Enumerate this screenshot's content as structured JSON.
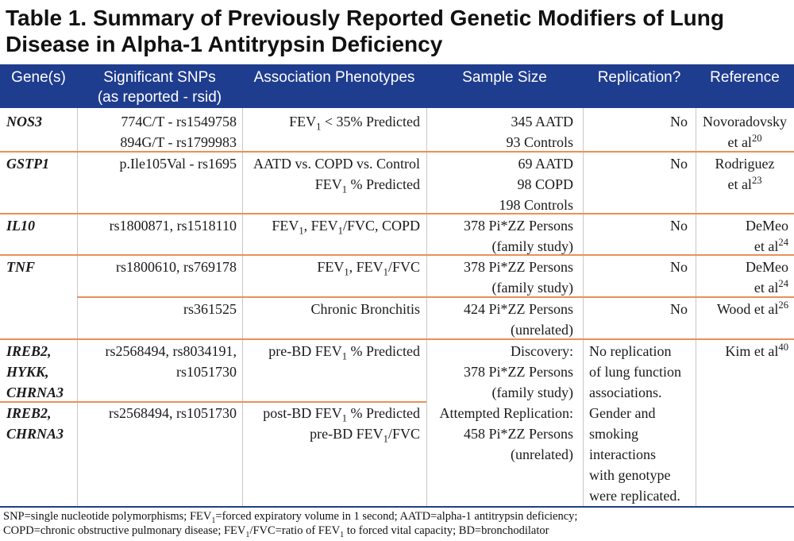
{
  "title": "Table 1. Summary of Previously Reported Genetic Modifiers of Lung Disease in Alpha-1 Antitrypsin Deficiency",
  "headers": {
    "gene": "Gene(s)",
    "snps_line1": "Significant SNPs",
    "snps_line2": "(as reported - rsid)",
    "phenotypes": "Association Phenotypes",
    "sample": "Sample Size",
    "replication": "Replication?",
    "reference": "Reference"
  },
  "rows": {
    "nos3": {
      "gene": "NOS3",
      "snp1": "774C/T - rs1549758",
      "snp2": "894G/T - rs1799983",
      "pheno_a": "FEV",
      "pheno_sub": "1",
      "pheno_b": " < 35% Predicted",
      "sample1": "345 AATD",
      "sample2": "93 Controls",
      "replication": "No",
      "ref1": "Novoradovsky",
      "ref2": "et al",
      "ref_sup": "20"
    },
    "gstp1": {
      "gene": "GSTP1",
      "snp1": "p.Ile105Val - rs1695",
      "pheno1": "AATD vs. COPD vs. Control",
      "pheno2_a": "FEV",
      "pheno2_sub": "1",
      "pheno2_b": " % Predicted",
      "sample1": "69 AATD",
      "sample2": "98 COPD",
      "sample3": "198 Controls",
      "replication": "No",
      "ref1": "Rodriguez",
      "ref2": "et al",
      "ref_sup": "23"
    },
    "il10": {
      "gene": "IL10",
      "snp1": "rs1800871, rs1518110",
      "pheno_a": "FEV",
      "pheno_sub1": "1",
      "pheno_b": ", FEV",
      "pheno_sub2": "1",
      "pheno_c": "/FVC, COPD",
      "sample1": "378 Pi*ZZ Persons",
      "sample2": "(family study)",
      "replication": "No",
      "ref1": "DeMeo",
      "ref2": "et al",
      "ref_sup": "24"
    },
    "tnf": {
      "gene": "TNF",
      "snp1": "rs1800610, rs769178",
      "pheno_a": "FEV",
      "pheno_sub1": "1",
      "pheno_b": ", FEV",
      "pheno_sub2": "1",
      "pheno_c": "/FVC",
      "sample1": "378 Pi*ZZ Persons",
      "sample2": "(family study)",
      "replication": "No",
      "ref1": "DeMeo",
      "ref2": "et al",
      "ref_sup": "24",
      "snp_b": "rs361525",
      "pheno_b_row": "Chronic Bronchitis",
      "sample_b1": "424 Pi*ZZ Persons",
      "sample_b2": "(unrelated)",
      "replication_b": "No",
      "ref_b": "Wood et al",
      "ref_b_sup": "26"
    },
    "ireb2a": {
      "gene1": "IREB2,",
      "gene2": "HYKK,",
      "gene3": "CHRNA3",
      "snp1": "rs2568494, rs8034191,",
      "snp2": "rs1051730",
      "pheno_a": "pre-BD FEV",
      "pheno_sub": "1",
      "pheno_b": " % Predicted",
      "sample1": "Discovery:",
      "sample2": "378 Pi*ZZ Persons",
      "sample3": "(family study)"
    },
    "ireb2b": {
      "gene1": "IREB2,",
      "gene2": "CHRNA3",
      "snp1": "rs2568494, rs1051730",
      "pheno1_a": "post-BD FEV",
      "pheno1_sub": "1",
      "pheno1_b": " % Predicted",
      "pheno2_a": "pre-BD FEV",
      "pheno2_sub": "1",
      "pheno2_b": "/FVC",
      "sample1": "Attempted Replication:",
      "sample2": "458 Pi*ZZ Persons",
      "sample3": "(unrelated)"
    },
    "kim": {
      "rep1": "No replication",
      "rep2": "of lung function",
      "rep3": "associations.",
      "rep4": "Gender and",
      "rep5": "smoking",
      "rep6": "interactions",
      "rep7": "with genotype",
      "rep8": "were replicated.",
      "ref": "Kim et al",
      "ref_sup": "40"
    }
  },
  "footnote": {
    "l1a": "SNP=single nucleotide polymorphisms; FEV",
    "l1sub": "1",
    "l1b": "=forced expiratory volume in 1 second; AATD=alpha-1 antitrypsin deficiency;",
    "l2a": "COPD=chronic obstructive pulmonary disease; FEV",
    "l2sub1": "1",
    "l2b": "/FVC=ratio of FEV",
    "l2sub2": "1",
    "l2c": " to forced vital capacity; BD=bronchodilator"
  },
  "colors": {
    "header_bg": "#1f3d8f",
    "row_divider": "#e8915a",
    "header_text": "#ffffff"
  }
}
